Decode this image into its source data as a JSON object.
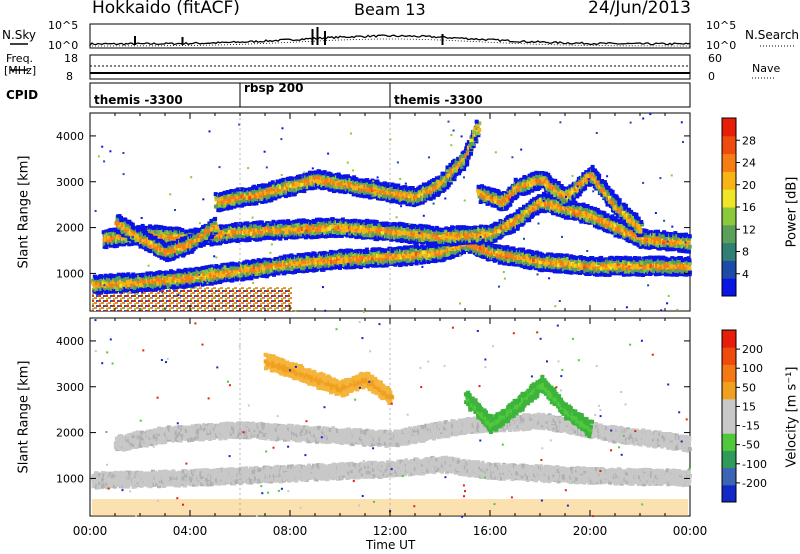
{
  "header": {
    "station": "Hokkaido (fitACF)",
    "beam": "Beam 13",
    "date": "24/Jun/2013"
  },
  "noise_panel": {
    "left_label": "N.Sky",
    "right_label": "N.Search",
    "left_ticks": [
      "10^5",
      "10^0"
    ],
    "right_ticks": [
      "10^5",
      "10^0"
    ]
  },
  "freq_panel": {
    "left_label_1": "Freq.",
    "left_label_2": "[MHz]",
    "right_label": "Nave",
    "left_ticks": [
      "18",
      "8"
    ],
    "right_ticks": [
      "60",
      "0"
    ]
  },
  "cpid": {
    "label": "CPID",
    "segments": [
      {
        "start_hour": 0,
        "name": "themis -3300"
      },
      {
        "start_hour": 6,
        "name": "rbsp 200"
      },
      {
        "start_hour": 12,
        "name": "themis -3300"
      }
    ]
  },
  "chart_data": [
    {
      "type": "heatmap",
      "quantity": "Power",
      "ylabel": "Slant Range [km]",
      "xlabel": "",
      "ylim": [
        180,
        4500
      ],
      "yticks": [
        "1000",
        "2000",
        "3000",
        "4000"
      ],
      "xlim_hours": [
        0,
        24
      ],
      "colorbar": {
        "label": "Power [dB]",
        "ticks": [
          "4",
          "8",
          "12",
          "16",
          "20",
          "24",
          "28"
        ],
        "colors": [
          "#0a14e6",
          "#1e4aa8",
          "#2f7f73",
          "#5aa05a",
          "#8cc83c",
          "#f0e628",
          "#f7b414",
          "#f57d14",
          "#f04b0f",
          "#e61e0a"
        ]
      },
      "traces": [
        {
          "name": "lower band",
          "points": [
            [
              0,
              800
            ],
            [
              2,
              850
            ],
            [
              4,
              950
            ],
            [
              6,
              1100
            ],
            [
              8,
              1250
            ],
            [
              10,
              1350
            ],
            [
              12,
              1400
            ],
            [
              14,
              1500
            ],
            [
              15,
              1700
            ],
            [
              16,
              1500
            ],
            [
              18,
              1300
            ],
            [
              20,
              1200
            ],
            [
              22,
              1200
            ],
            [
              24,
              1200
            ]
          ]
        },
        {
          "name": "middle band",
          "points": [
            [
              0.5,
              1800
            ],
            [
              2,
              1900
            ],
            [
              4,
              1800
            ],
            [
              6,
              1950
            ],
            [
              8,
              2000
            ],
            [
              10,
              2050
            ],
            [
              12,
              1950
            ],
            [
              14,
              1850
            ],
            [
              16,
              1900
            ],
            [
              17,
              2200
            ],
            [
              18,
              2600
            ],
            [
              20,
              2300
            ],
            [
              22,
              1800
            ],
            [
              24,
              1700
            ]
          ]
        },
        {
          "name": "arc 1",
          "points": [
            [
              1,
              2150
            ],
            [
              2,
              1800
            ],
            [
              3,
              1500
            ],
            [
              4,
              1700
            ],
            [
              5,
              2100
            ]
          ]
        },
        {
          "name": "upper band",
          "points": [
            [
              5,
              2600
            ],
            [
              7,
              2800
            ],
            [
              9,
              3100
            ],
            [
              11,
              2900
            ],
            [
              13,
              2700
            ],
            [
              14,
              3000
            ],
            [
              15,
              3600
            ],
            [
              15.5,
              4300
            ]
          ]
        },
        {
          "name": "evening arcs",
          "points": [
            [
              15.5,
              2800
            ],
            [
              16.5,
              2600
            ],
            [
              17,
              2900
            ],
            [
              18,
              3100
            ],
            [
              19,
              2700
            ],
            [
              20,
              3200
            ],
            [
              21,
              2500
            ],
            [
              22,
              2000
            ]
          ]
        }
      ]
    },
    {
      "type": "heatmap",
      "quantity": "Velocity",
      "ylabel": "Slant Range [km]",
      "xlabel": "Time UT",
      "ylim": [
        180,
        4500
      ],
      "yticks": [
        "1000",
        "2000",
        "3000",
        "4000"
      ],
      "xlim_hours": [
        0,
        24
      ],
      "xticks": [
        "00:00",
        "04:00",
        "08:00",
        "12:00",
        "16:00",
        "20:00",
        "00:00"
      ],
      "colorbar": {
        "label": "Velocity [m s⁻¹]",
        "ticks": [
          "200",
          "100",
          "50",
          "15",
          "-15",
          "-50",
          "-100",
          "-200"
        ],
        "colors": [
          "#1428c8",
          "#3c64b4",
          "#2f9a5a",
          "#50c83c",
          "#c8c8c8",
          "#c8c8c8",
          "#f0a01e",
          "#f57814",
          "#f04b0f",
          "#e61e0a"
        ]
      },
      "traces": [
        {
          "name": "ground scatter low",
          "color": "gray",
          "points": [
            [
              0,
              1000
            ],
            [
              4,
              1050
            ],
            [
              8,
              1150
            ],
            [
              12,
              1250
            ],
            [
              14,
              1350
            ],
            [
              16,
              1200
            ],
            [
              20,
              1100
            ],
            [
              24,
              1050
            ]
          ]
        },
        {
          "name": "ground scatter mid",
          "color": "gray",
          "points": [
            [
              1,
              1800
            ],
            [
              3,
              2000
            ],
            [
              6,
              2100
            ],
            [
              9,
              2000
            ],
            [
              12,
              1900
            ],
            [
              15,
              2200
            ],
            [
              18,
              2300
            ],
            [
              21,
              2000
            ],
            [
              24,
              1800
            ]
          ]
        },
        {
          "name": "negative upper",
          "color": "orange",
          "points": [
            [
              7,
              3600
            ],
            [
              8,
              3400
            ],
            [
              9,
              3200
            ],
            [
              10,
              3000
            ],
            [
              11,
              3200
            ],
            [
              12,
              2800
            ]
          ]
        },
        {
          "name": "positive evening",
          "color": "green",
          "points": [
            [
              15,
              2800
            ],
            [
              16,
              2200
            ],
            [
              17,
              2600
            ],
            [
              18,
              3100
            ],
            [
              19,
              2500
            ],
            [
              20,
              2100
            ]
          ]
        }
      ]
    }
  ]
}
